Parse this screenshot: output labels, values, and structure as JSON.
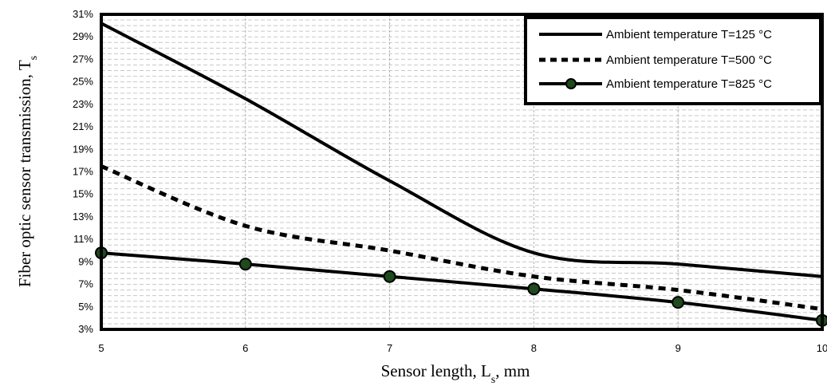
{
  "chart_data": {
    "type": "line",
    "title": "",
    "xlabel": "Sensor length, L",
    "xlabel_sub": "s",
    "xlabel_suffix": ", mm",
    "ylabel": "Fiber optic sensor transmission, T",
    "ylabel_sub": "s",
    "x": [
      5,
      6,
      7,
      8,
      9,
      10
    ],
    "xlim": [
      5,
      10
    ],
    "ylim": [
      3,
      31
    ],
    "x_ticks": [
      "5",
      "6",
      "7",
      "8",
      "9",
      "10"
    ],
    "y_ticks": [
      "3%",
      "5%",
      "7%",
      "9%",
      "11%",
      "13%",
      "15%",
      "17%",
      "19%",
      "21%",
      "23%",
      "25%",
      "27%",
      "29%",
      "31%"
    ],
    "y_minor_step": 0.5,
    "grid": true,
    "legend_position": "top-right",
    "colors": {
      "line": "#000000",
      "marker_fill": "#1e4a1e",
      "grid": "#c8c8c8",
      "background": "#ffffff"
    },
    "series": [
      {
        "name": "Ambient temperature T=125 °C",
        "style": "solid",
        "markers": false,
        "values": [
          30.2,
          23.5,
          16.2,
          9.8,
          8.8,
          7.7
        ]
      },
      {
        "name": "Ambient temperature T=500 °C",
        "style": "dashed",
        "markers": false,
        "values": [
          17.5,
          12.2,
          10.0,
          7.7,
          6.5,
          4.8
        ]
      },
      {
        "name": "Ambient temperature T=825 °C",
        "style": "solid",
        "markers": true,
        "values": [
          9.8,
          8.8,
          7.7,
          6.6,
          5.4,
          3.8
        ]
      }
    ]
  }
}
